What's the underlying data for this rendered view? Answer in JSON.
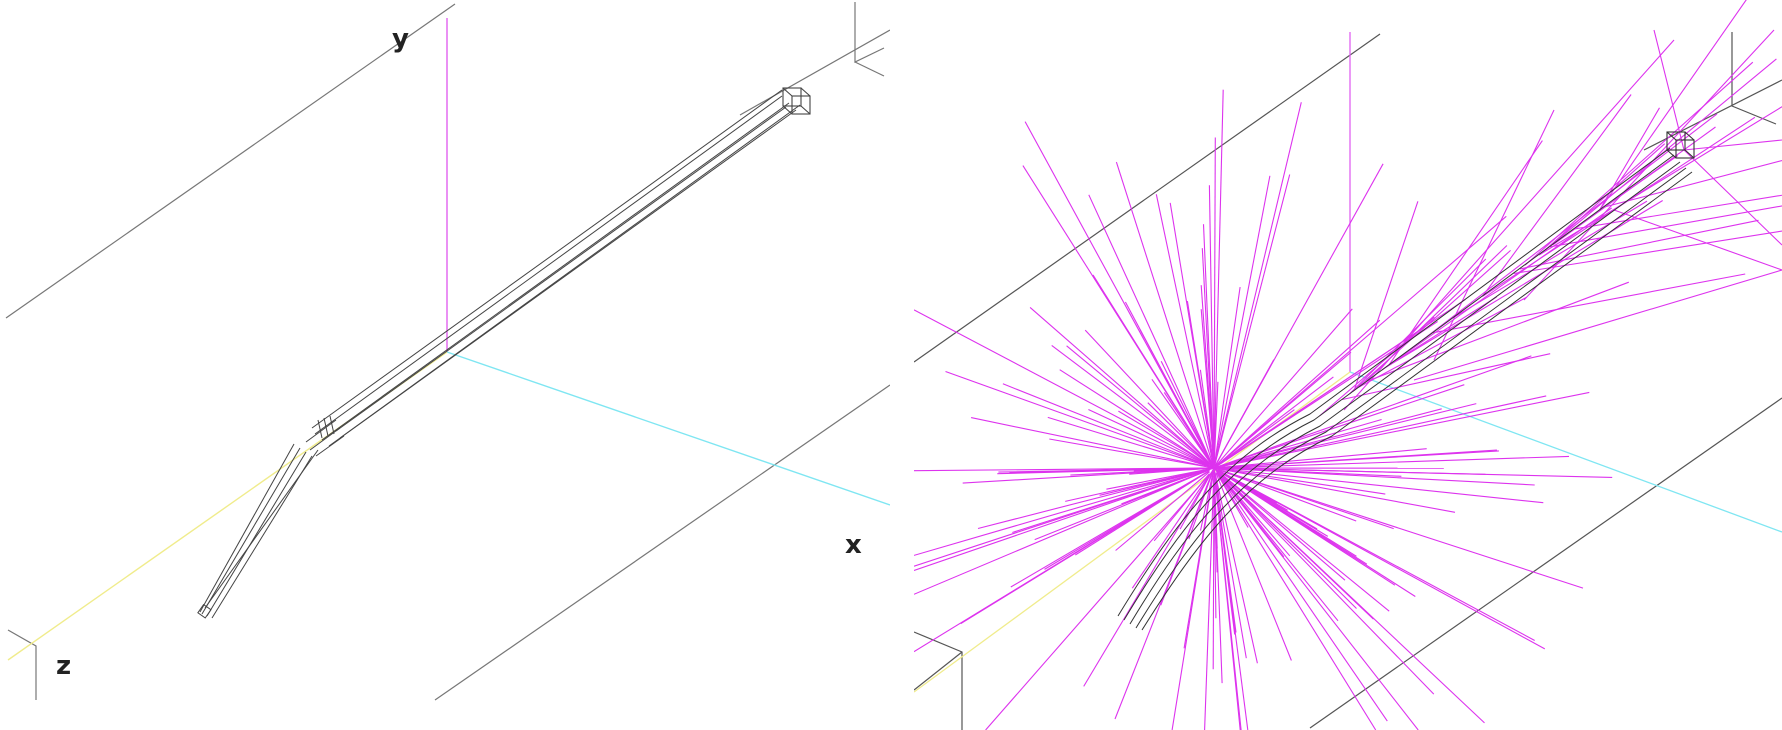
{
  "panels": [
    {
      "id": "left",
      "description_free": true,
      "axis_labels": {
        "x": "x",
        "y": "y",
        "z": "z"
      },
      "colors": {
        "frame": "#777777",
        "beamline": "#444444",
        "y_axis": "#e060f0",
        "x_axis": "#7fe6f2",
        "z_axis": "#f0ec8c"
      }
    },
    {
      "id": "right",
      "colors": {
        "frame": "#555555",
        "beamline": "#333333",
        "tracks": "#dd33ee",
        "x_axis": "#7fe6f2",
        "z_axis": "#f0ec8c"
      }
    }
  ]
}
